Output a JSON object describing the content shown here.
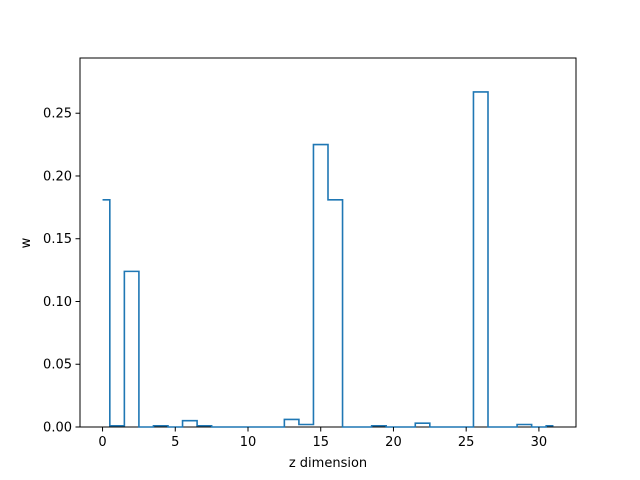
{
  "chart_data": {
    "type": "step",
    "title": "",
    "xlabel": "z dimension",
    "ylabel": "w",
    "xlim": [
      -1.55,
      32.55
    ],
    "ylim": [
      0,
      0.294
    ],
    "grid": false,
    "legend": "none",
    "series_color": "#1f77b4",
    "x_ticks": [
      0,
      5,
      10,
      15,
      20,
      25,
      30
    ],
    "x_tick_labels": [
      "0",
      "5",
      "10",
      "15",
      "20",
      "25",
      "30"
    ],
    "y_ticks": [
      0.0,
      0.05,
      0.1,
      0.15,
      0.2,
      0.25
    ],
    "y_tick_labels": [
      "0.00",
      "0.05",
      "0.10",
      "0.15",
      "0.20",
      "0.25"
    ],
    "series": [
      {
        "x": [
          0,
          1,
          2,
          3,
          4,
          5,
          6,
          7,
          8,
          9,
          10,
          11,
          12,
          13,
          14,
          15,
          16,
          17,
          18,
          19,
          20,
          21,
          22,
          23,
          24,
          25,
          26,
          27,
          28,
          29,
          30,
          31
        ],
        "values": [
          0.181,
          0.001,
          0.124,
          0.0,
          0.001,
          0.0,
          0.005,
          0.001,
          0.0,
          0.0,
          0.0,
          0.0,
          0.0,
          0.006,
          0.002,
          0.225,
          0.181,
          0.0,
          0.0,
          0.001,
          0.0,
          0.0,
          0.003,
          0.0,
          0.0,
          0.0,
          0.267,
          0.0,
          0.0,
          0.002,
          0.0,
          0.001
        ]
      }
    ]
  }
}
